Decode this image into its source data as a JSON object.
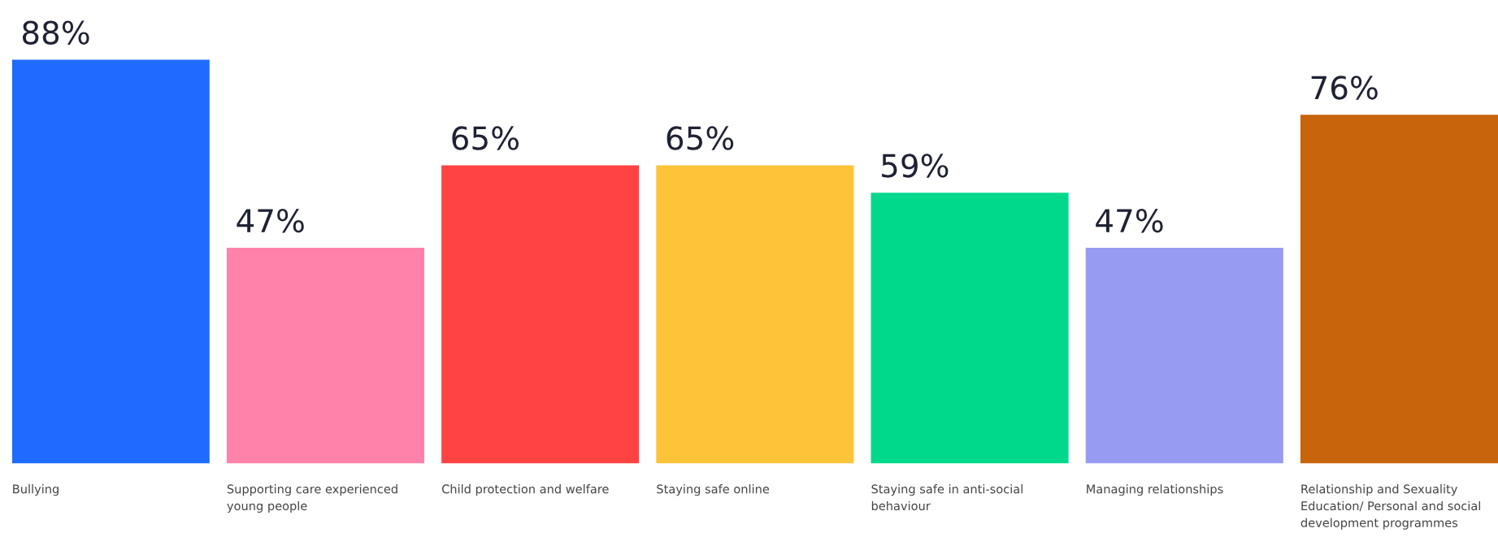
{
  "chart_data": {
    "type": "bar",
    "categories": [
      "Bullying",
      "Supporting care experienced young people",
      "Child protection and welfare",
      "Staying safe online",
      "Staying safe in anti-social behaviour",
      "Managing relationships",
      "Relationship and Sexuality Education/ Personal and social development programmes"
    ],
    "values": [
      88,
      47,
      65,
      65,
      59,
      47,
      76
    ],
    "colors": [
      "#1f6bff",
      "#ff82ab",
      "#ff4242",
      "#fdc43a",
      "#00d98c",
      "#979bf2",
      "#c8640c"
    ],
    "value_labels": [
      "88%",
      "47%",
      "65%",
      "65%",
      "59%",
      "47%",
      "76%"
    ]
  }
}
